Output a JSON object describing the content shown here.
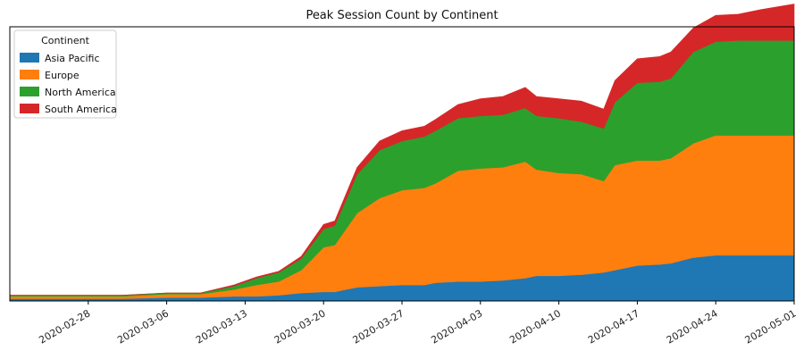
{
  "chart_data": {
    "type": "area",
    "stacked": true,
    "title": "Peak Session Count by Continent",
    "xlabel": "",
    "ylabel": "",
    "x_tick_labels": [
      "2020-02-28",
      "2020-03-06",
      "2020-03-13",
      "2020-03-20",
      "2020-03-27",
      "2020-04-03",
      "2020-04-10",
      "2020-04-17",
      "2020-04-24",
      "2020-05-01"
    ],
    "x": [
      "2020-02-21",
      "2020-02-28",
      "2020-03-02",
      "2020-03-06",
      "2020-03-09",
      "2020-03-12",
      "2020-03-14",
      "2020-03-16",
      "2020-03-18",
      "2020-03-20",
      "2020-03-21",
      "2020-03-23",
      "2020-03-25",
      "2020-03-27",
      "2020-03-29",
      "2020-03-30",
      "2020-04-01",
      "2020-04-03",
      "2020-04-05",
      "2020-04-07",
      "2020-04-08",
      "2020-04-10",
      "2020-04-12",
      "2020-04-14",
      "2020-04-15",
      "2020-04-17",
      "2020-04-19",
      "2020-04-20",
      "2020-04-22",
      "2020-04-24",
      "2020-04-26",
      "2020-04-28",
      "2020-05-01"
    ],
    "y_axis": "hidden",
    "legend_title": "Continent",
    "legend_position": "top-left",
    "grid": false,
    "series": [
      {
        "name": "Asia Pacific",
        "color": "#1f77b4",
        "values": [
          2,
          2,
          2,
          3,
          3,
          4,
          4,
          5,
          7,
          8,
          8,
          12,
          13,
          14,
          14,
          16,
          17,
          17,
          18,
          20,
          22,
          22,
          23,
          25,
          27,
          31,
          32,
          33,
          38,
          40,
          40,
          40,
          40
        ]
      },
      {
        "name": "Europe",
        "color": "#ff7f0e",
        "values": [
          2,
          2,
          2,
          3,
          3,
          6,
          10,
          12,
          20,
          39,
          41,
          65,
          77,
          83,
          85,
          87,
          97,
          99,
          99,
          102,
          93,
          90,
          88,
          80,
          92,
          92,
          91,
          92,
          100,
          105,
          105,
          105,
          105
        ]
      },
      {
        "name": "North America",
        "color": "#2ca02c",
        "values": [
          1,
          1,
          1,
          1,
          1,
          3,
          6,
          8,
          10,
          16,
          17,
          34,
          42,
          43,
          45,
          46,
          46,
          46,
          46,
          47,
          47,
          48,
          46,
          46,
          55,
          68,
          69,
          70,
          80,
          82,
          83,
          83,
          83
        ]
      },
      {
        "name": "South America",
        "color": "#d62728",
        "values": [
          0,
          0,
          0,
          0,
          0,
          1,
          1,
          1,
          2,
          4,
          4,
          6,
          8,
          9,
          9,
          10,
          12,
          15,
          16,
          18,
          17,
          17,
          18,
          17,
          19,
          21,
          22,
          23,
          21,
          23,
          23,
          27,
          32
        ]
      }
    ]
  }
}
